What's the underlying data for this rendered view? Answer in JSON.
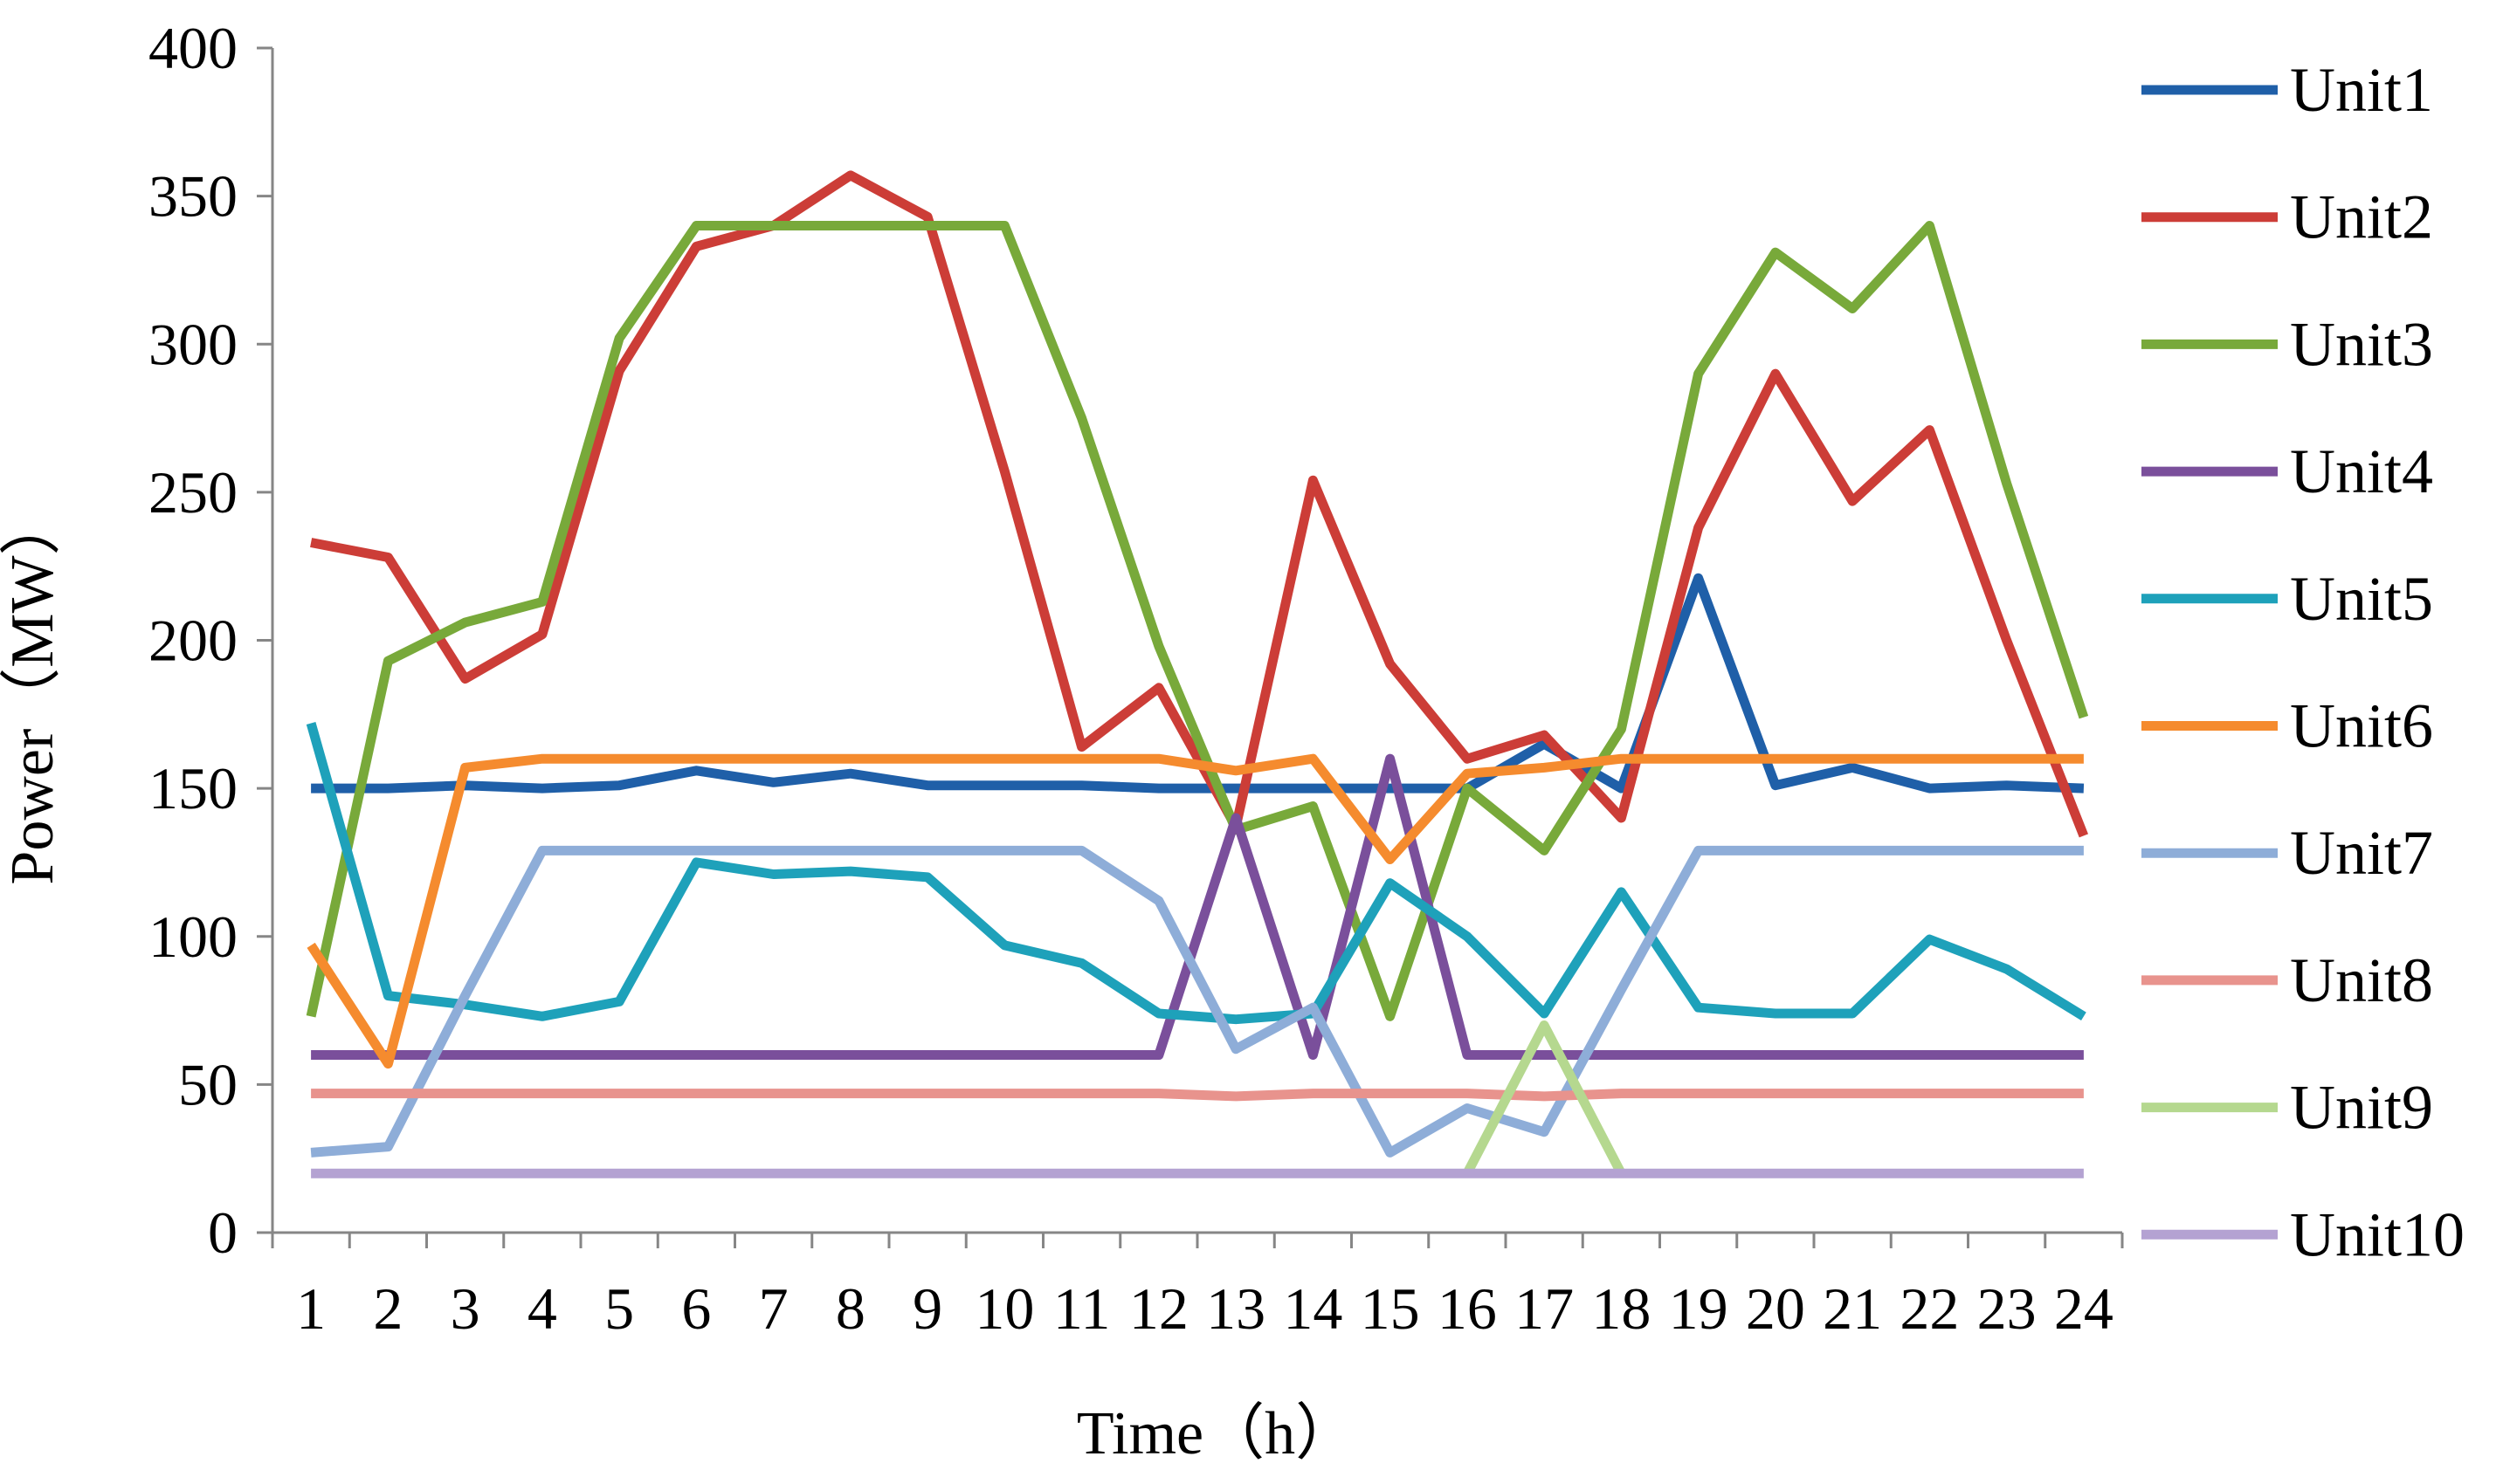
{
  "chart_data": {
    "type": "line",
    "title": "",
    "xlabel": "Time（h）",
    "ylabel": "Power（MW）",
    "ylim": [
      0,
      400
    ],
    "yticks": [
      0,
      50,
      100,
      150,
      200,
      250,
      300,
      350,
      400
    ],
    "grid": false,
    "legend_position": "right",
    "categories": [
      "1",
      "2",
      "3",
      "4",
      "5",
      "6",
      "7",
      "8",
      "9",
      "10",
      "11",
      "12",
      "13",
      "14",
      "15",
      "16",
      "17",
      "18",
      "19",
      "20",
      "21",
      "22",
      "23",
      "24"
    ],
    "series": [
      {
        "name": "Unit1",
        "color": "#1f5fa8",
        "values": [
          150,
          150,
          151,
          150,
          151,
          156,
          152,
          155,
          151,
          151,
          151,
          150,
          150,
          150,
          150,
          150,
          165,
          150,
          221,
          151,
          157,
          150,
          151,
          150
        ]
      },
      {
        "name": "Unit2",
        "color": "#cc3d37",
        "values": [
          233,
          228,
          187,
          202,
          291,
          333,
          340,
          357,
          343,
          257,
          164,
          184,
          137,
          254,
          192,
          160,
          168,
          140,
          238,
          290,
          247,
          271,
          200,
          134
        ]
      },
      {
        "name": "Unit3",
        "color": "#78a93a",
        "values": [
          73,
          193,
          206,
          213,
          302,
          340,
          340,
          340,
          340,
          340,
          275,
          198,
          136,
          144,
          73,
          150,
          129,
          170,
          290,
          331,
          312,
          340,
          253,
          174
        ]
      },
      {
        "name": "Unit4",
        "color": "#7a4f9b",
        "values": [
          60,
          60,
          60,
          60,
          60,
          60,
          60,
          60,
          60,
          60,
          60,
          60,
          140,
          60,
          160,
          60,
          60,
          60,
          60,
          60,
          60,
          60,
          60,
          60
        ]
      },
      {
        "name": "Unit5",
        "color": "#1ea1ba",
        "values": [
          172,
          80,
          77,
          73,
          78,
          125,
          121,
          122,
          120,
          97,
          91,
          74,
          72,
          74,
          118,
          100,
          74,
          115,
          76,
          74,
          74,
          99,
          89,
          73
        ]
      },
      {
        "name": "Unit6",
        "color": "#f58b2e",
        "values": [
          97,
          57,
          157,
          160,
          160,
          160,
          160,
          160,
          160,
          160,
          160,
          160,
          156,
          160,
          126,
          155,
          157,
          160,
          160,
          160,
          160,
          160,
          160,
          160
        ]
      },
      {
        "name": "Unit7",
        "color": "#8eadd8",
        "values": [
          27,
          29,
          80,
          129,
          129,
          129,
          129,
          129,
          129,
          129,
          129,
          112,
          62,
          76,
          27,
          42,
          34,
          82,
          129,
          129,
          129,
          129,
          129,
          129
        ]
      },
      {
        "name": "Unit8",
        "color": "#e8938d",
        "values": [
          47,
          47,
          47,
          47,
          47,
          47,
          47,
          47,
          47,
          47,
          47,
          47,
          46,
          47,
          47,
          47,
          46,
          47,
          47,
          47,
          47,
          47,
          47,
          47
        ]
      },
      {
        "name": "Unit9",
        "color": "#b5d88f",
        "values": [
          null,
          null,
          null,
          null,
          null,
          null,
          null,
          null,
          null,
          null,
          null,
          null,
          null,
          null,
          null,
          20,
          70,
          20,
          null,
          null,
          null,
          null,
          null,
          null
        ]
      },
      {
        "name": "Unit10",
        "color": "#b4a2d2",
        "values": [
          20,
          20,
          20,
          20,
          20,
          20,
          20,
          20,
          20,
          20,
          20,
          20,
          20,
          20,
          20,
          20,
          20,
          20,
          20,
          20,
          20,
          20,
          20,
          20
        ]
      }
    ]
  }
}
